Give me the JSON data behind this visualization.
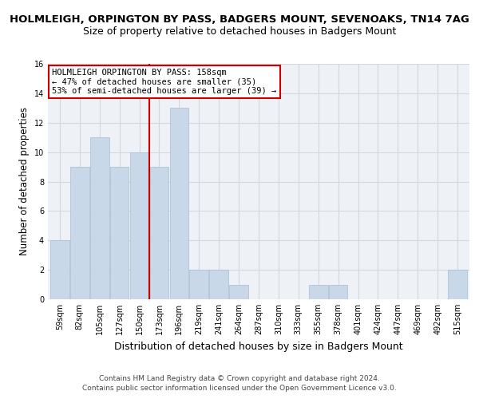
{
  "title": "HOLMLEIGH, ORPINGTON BY PASS, BADGERS MOUNT, SEVENOAKS, TN14 7AG",
  "subtitle": "Size of property relative to detached houses in Badgers Mount",
  "xlabel": "Distribution of detached houses by size in Badgers Mount",
  "ylabel": "Number of detached properties",
  "categories": [
    "59sqm",
    "82sqm",
    "105sqm",
    "127sqm",
    "150sqm",
    "173sqm",
    "196sqm",
    "219sqm",
    "241sqm",
    "264sqm",
    "287sqm",
    "310sqm",
    "333sqm",
    "355sqm",
    "378sqm",
    "401sqm",
    "424sqm",
    "447sqm",
    "469sqm",
    "492sqm",
    "515sqm"
  ],
  "values": [
    4,
    9,
    11,
    9,
    10,
    9,
    13,
    2,
    2,
    1,
    0,
    0,
    0,
    1,
    1,
    0,
    0,
    0,
    0,
    0,
    2
  ],
  "bar_color": "#c8d8e8",
  "bar_edge_color": "#a8bece",
  "vline_x_index": 4.5,
  "vline_color": "#cc0000",
  "annotation_text": "HOLMLEIGH ORPINGTON BY PASS: 158sqm\n← 47% of detached houses are smaller (35)\n53% of semi-detached houses are larger (39) →",
  "annotation_box_color": "#ffffff",
  "annotation_box_edge": "#cc0000",
  "ylim": [
    0,
    16
  ],
  "yticks": [
    0,
    2,
    4,
    6,
    8,
    10,
    12,
    14,
    16
  ],
  "footer1": "Contains HM Land Registry data © Crown copyright and database right 2024.",
  "footer2": "Contains public sector information licensed under the Open Government Licence v3.0.",
  "bg_color": "#eef2f7",
  "grid_color": "#d0d8e4",
  "title_fontsize": 9.5,
  "subtitle_fontsize": 9,
  "xlabel_fontsize": 9,
  "ylabel_fontsize": 8.5,
  "tick_fontsize": 7,
  "footer_fontsize": 6.5,
  "annotation_fontsize": 7.5
}
